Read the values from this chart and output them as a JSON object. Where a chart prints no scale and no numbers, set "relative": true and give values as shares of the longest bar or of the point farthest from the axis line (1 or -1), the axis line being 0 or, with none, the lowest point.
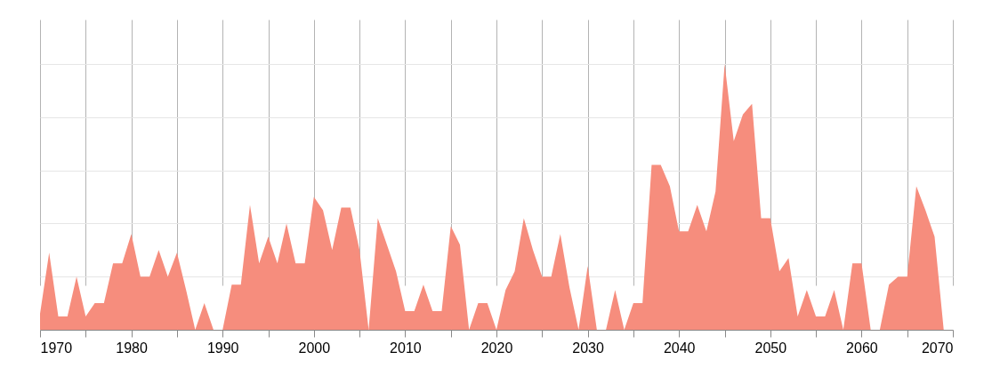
{
  "chart_data": {
    "type": "area",
    "relative": true,
    "grid": true,
    "x": [
      1970,
      1971,
      1972,
      1973,
      1974,
      1975,
      1976,
      1977,
      1978,
      1979,
      1980,
      1981,
      1982,
      1983,
      1984,
      1985,
      1986,
      1987,
      1988,
      1989,
      1990,
      1991,
      1992,
      1993,
      1994,
      1995,
      1996,
      1997,
      1998,
      1999,
      2000,
      2001,
      2002,
      2003,
      2004,
      2005,
      2006,
      2007,
      2008,
      2009,
      2010,
      2011,
      2012,
      2013,
      2014,
      2015,
      2016,
      2017,
      2018,
      2019,
      2020,
      2021,
      2022,
      2023,
      2024,
      2025,
      2026,
      2027,
      2028,
      2029,
      2030,
      2031,
      2032,
      2033,
      2034,
      2035,
      2036,
      2037,
      2038,
      2039,
      2040,
      2041,
      2042,
      2043,
      2044,
      2045,
      2046,
      2047,
      2048,
      2049,
      2050,
      2051,
      2052,
      2053,
      2054,
      2055,
      2056,
      2057,
      2058,
      2059,
      2060,
      2061,
      2062,
      2063,
      2064,
      2065,
      2066,
      2067,
      2068,
      2069
    ],
    "series": [
      {
        "color": "#f68d7d",
        "values": [
          0.06,
          0.29,
          0.05,
          0.05,
          0.2,
          0.05,
          0.1,
          0.1,
          0.25,
          0.25,
          0.36,
          0.2,
          0.2,
          0.3,
          0.2,
          0.29,
          0.15,
          0,
          0.1,
          0,
          0,
          0.17,
          0.17,
          0.47,
          0.25,
          0.35,
          0.25,
          0.4,
          0.25,
          0.25,
          0.5,
          0.45,
          0.3,
          0.46,
          0.46,
          0.3,
          0,
          0.42,
          0.32,
          0.22,
          0.07,
          0.07,
          0.17,
          0.07,
          0.07,
          0.39,
          0.32,
          0,
          0.1,
          0.1,
          0,
          0.15,
          0.22,
          0.42,
          0.3,
          0.2,
          0.2,
          0.36,
          0.16,
          0,
          0.24,
          0,
          0,
          0.15,
          0,
          0.1,
          0.1,
          0.62,
          0.62,
          0.54,
          0.37,
          0.37,
          0.47,
          0.37,
          0.52,
          1,
          0.71,
          0.81,
          0.85,
          0.42,
          0.42,
          0.22,
          0.27,
          0.05,
          0.15,
          0.05,
          0.05,
          0.15,
          0,
          0.25,
          0.25,
          0,
          0,
          0.17,
          0.2,
          0.2,
          0.54,
          0.45,
          0.35,
          0
        ]
      }
    ],
    "xlim": [
      1970,
      2070
    ],
    "xticks": [
      1970,
      {
        "value": 1975,
        "label": null
      },
      1980,
      {
        "value": 1985,
        "label": null
      },
      1990,
      {
        "value": 1995,
        "label": null
      },
      2000,
      {
        "value": 2005,
        "label": null
      },
      2010,
      {
        "value": 2015,
        "label": null
      },
      2020,
      {
        "value": 2025,
        "label": null
      },
      2030,
      {
        "value": 2035,
        "label": null
      },
      2040,
      {
        "value": 2045,
        "label": null
      },
      2050,
      {
        "value": 2055,
        "label": null
      },
      2060,
      {
        "value": 2065,
        "label": null
      },
      2070
    ]
  }
}
